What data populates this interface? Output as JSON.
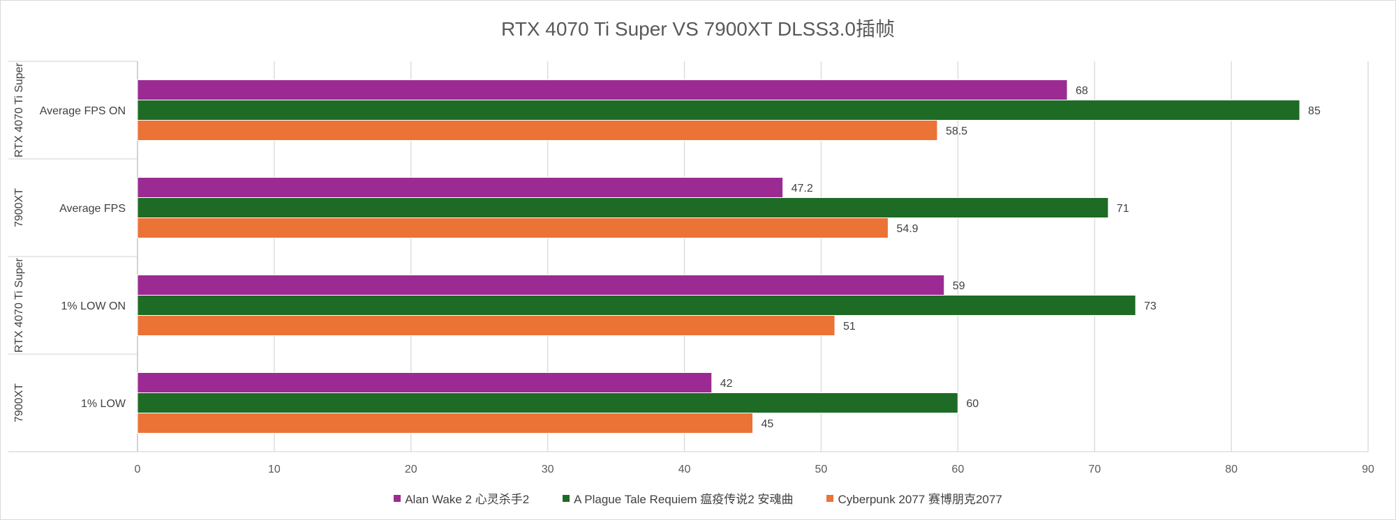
{
  "chart_data": {
    "type": "bar",
    "orientation": "horizontal",
    "title": "RTX 4070 Ti Super VS 7900XT DLSS3.0插帧",
    "categories": [
      "Average FPS ON",
      "Average FPS",
      "1% LOW ON",
      "1% LOW"
    ],
    "groups": [
      "RTX 4070 Ti Super",
      "7900XT",
      "RTX 4070 Ti Super",
      "7900XT"
    ],
    "series": [
      {
        "name": "Alan Wake 2 心灵杀手2",
        "color": "#9B2B93",
        "values": [
          68,
          47.2,
          59,
          42
        ],
        "labels": [
          "68",
          "47.2",
          "59",
          "42"
        ]
      },
      {
        "name": "A Plague Tale Requiem 瘟疫传说2 安魂曲",
        "color": "#1E6B25",
        "values": [
          85,
          71,
          73,
          60
        ],
        "labels": [
          "85",
          "71",
          "73",
          "60"
        ]
      },
      {
        "name": "Cyberpunk 2077 赛博朋克2077",
        "color": "#EB7336",
        "values": [
          58.5,
          54.9,
          51,
          45
        ],
        "labels": [
          "58.5",
          "54.9",
          "51",
          "45"
        ]
      }
    ],
    "xlim": [
      0,
      90
    ],
    "xticks": [
      "0",
      "10",
      "20",
      "30",
      "40",
      "50",
      "60",
      "70",
      "80",
      "90"
    ],
    "grid": true,
    "legend": "bottom"
  }
}
